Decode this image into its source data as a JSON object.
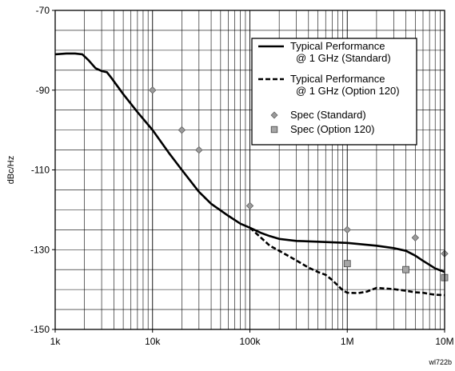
{
  "chart_data": {
    "type": "line",
    "xscale": "log",
    "xlim": [
      1000,
      10000000
    ],
    "ylim": [
      -150,
      -70
    ],
    "ylabel": "dBc/Hz",
    "xticks": [
      {
        "value": 1000,
        "label": "1k"
      },
      {
        "value": 10000,
        "label": "10k"
      },
      {
        "value": 100000,
        "label": "100k"
      },
      {
        "value": 1000000,
        "label": "1M"
      },
      {
        "value": 10000000,
        "label": "10M"
      }
    ],
    "yticks": [
      {
        "value": -70,
        "label": "-70"
      },
      {
        "value": -90,
        "label": "-90"
      },
      {
        "value": -110,
        "label": "-110"
      },
      {
        "value": -130,
        "label": "-130"
      },
      {
        "value": -150,
        "label": "-150"
      }
    ],
    "grid": true,
    "legend_position": "top-right",
    "code_label": "wl722b",
    "series": [
      {
        "name": "Typical Performance @ 1 GHz (Standard)",
        "legend_lines": [
          "Typical Performance",
          "@ 1 GHz (Standard)"
        ],
        "style": "solid",
        "color": "#000000",
        "x": [
          1000,
          1300,
          1600,
          1900,
          2200,
          2600,
          3000,
          3400,
          3800,
          5000,
          7000,
          10000,
          15000,
          20000,
          30000,
          40000,
          60000,
          80000,
          100000,
          130000,
          160000,
          200000,
          300000,
          500000,
          1000000,
          2000000,
          3000000,
          4000000,
          5000000,
          6000000,
          7000000,
          8000000,
          10000000
        ],
        "y": [
          -81,
          -80.8,
          -80.8,
          -81,
          -82.5,
          -84.5,
          -85.2,
          -85.5,
          -87,
          -91,
          -95.5,
          -100,
          -106,
          -110,
          -115.5,
          -118.5,
          -121.5,
          -123.5,
          -124.5,
          -125.8,
          -126.6,
          -127.3,
          -127.8,
          -128,
          -128.3,
          -129,
          -129.6,
          -130.3,
          -131.5,
          -132.8,
          -133.8,
          -134.7,
          -135.6
        ]
      },
      {
        "name": "Typical Performance @ 1 GHz (Option 120)",
        "legend_lines": [
          "Typical Performance",
          "@ 1 GHz (Option 120)"
        ],
        "style": "dashed",
        "color": "#000000",
        "x": [
          100000,
          130000,
          160000,
          200000,
          300000,
          400000,
          500000,
          600000,
          700000,
          800000,
          900000,
          1000000,
          1300000,
          1600000,
          2000000,
          3000000,
          4000000,
          5000000,
          6000000,
          7000000,
          8000000,
          10000000
        ],
        "y": [
          -124.5,
          -127,
          -129,
          -130.3,
          -132.7,
          -134.5,
          -135.6,
          -136.3,
          -137.6,
          -139,
          -140.2,
          -140.8,
          -140.9,
          -140.5,
          -139.6,
          -139.9,
          -140.3,
          -140.7,
          -140.8,
          -141.1,
          -141.3,
          -141.4
        ]
      },
      {
        "name": "Spec (Standard)",
        "legend_lines": [
          "Spec (Standard)"
        ],
        "style": "marker-diamond",
        "color": "#9a9a9a",
        "x": [
          10000,
          20000,
          30000,
          100000,
          1000000,
          5000000,
          10000000
        ],
        "y": [
          -90,
          -100,
          -105,
          -119,
          -125,
          -127,
          -131
        ]
      },
      {
        "name": "Spec (Option 120)",
        "legend_lines": [
          "Spec (Option 120)"
        ],
        "style": "marker-square",
        "color": "#a6a6a6",
        "x": [
          1000000,
          4000000,
          10000000
        ],
        "y": [
          -133.5,
          -135,
          -137
        ]
      }
    ]
  }
}
